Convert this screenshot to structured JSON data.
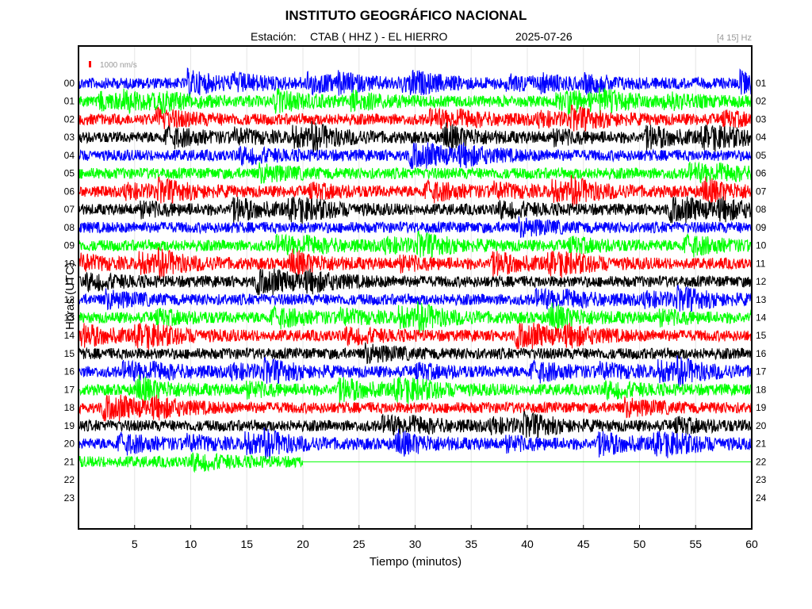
{
  "header": {
    "title": "INSTITUTO GEOGRÁFICO NACIONAL",
    "station_label": "Estación:",
    "station": "CTAB ( HHZ ) - EL HIERRO",
    "date": "2025-07-26",
    "band": "[4 15] Hz"
  },
  "chart_data": {
    "type": "line",
    "title": "INSTITUTO GEOGRÁFICO NACIONAL",
    "xlabel": "Tiempo (minutos)",
    "ylabel": "Horas (UTC)",
    "xlim": [
      0,
      60
    ],
    "x_ticks": [
      "5",
      "10",
      "15",
      "20",
      "25",
      "30",
      "35",
      "40",
      "45",
      "50",
      "55",
      "60"
    ],
    "left_hour_labels": [
      "00",
      "01",
      "02",
      "03",
      "04",
      "05",
      "06",
      "07",
      "08",
      "09",
      "10",
      "11",
      "12",
      "13",
      "14",
      "15",
      "16",
      "17",
      "18",
      "19",
      "20",
      "21",
      "22",
      "23"
    ],
    "right_hour_labels": [
      "01",
      "02",
      "03",
      "04",
      "05",
      "06",
      "07",
      "08",
      "09",
      "10",
      "11",
      "12",
      "13",
      "14",
      "15",
      "16",
      "17",
      "18",
      "19",
      "20",
      "21",
      "22",
      "23",
      "24"
    ],
    "scale_label": "1000 nm/s",
    "grid": true,
    "colors": [
      "#0000ff",
      "#00ff00",
      "#ff0000",
      "#000000"
    ],
    "trace_end_minutes": {
      "hour": "21",
      "minutes": 20
    },
    "flatline_after_end": true
  }
}
